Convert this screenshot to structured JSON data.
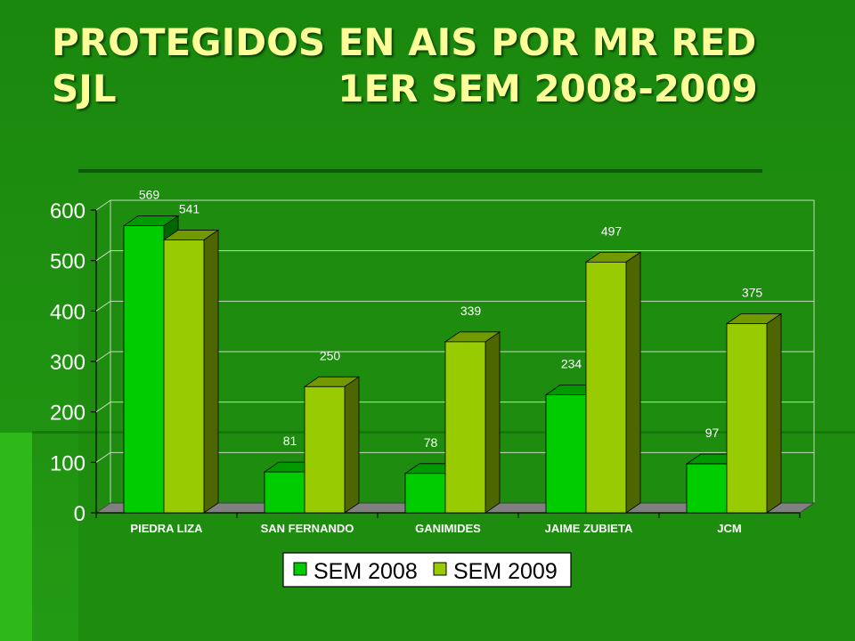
{
  "slide": {
    "title": "PROTEGIDOS EN AIS POR MR RED SJL                 1ER SEM 2008-2009"
  },
  "colors": {
    "background": "#1f8f10",
    "title_text": "#ffff99",
    "series_2008": "#00cc00",
    "series_2009": "#99cc00",
    "chart_floor": "#808080"
  },
  "chart_data": {
    "type": "bar",
    "title": "",
    "xlabel": "",
    "ylabel": "",
    "categories": [
      "PIEDRA LIZA",
      "SAN FERNANDO",
      "GANIMIDES",
      "JAIME ZUBIETA",
      "JCM"
    ],
    "series": [
      {
        "name": "SEM 2008",
        "values": [
          569,
          81,
          78,
          234,
          97
        ]
      },
      {
        "name": "SEM 2009",
        "values": [
          541,
          250,
          339,
          497,
          375
        ]
      }
    ],
    "ylim": [
      0,
      600
    ],
    "yticks": [
      0,
      100,
      200,
      300,
      400,
      500,
      600
    ],
    "grid": true,
    "legend": "bottom",
    "three_d": true
  }
}
